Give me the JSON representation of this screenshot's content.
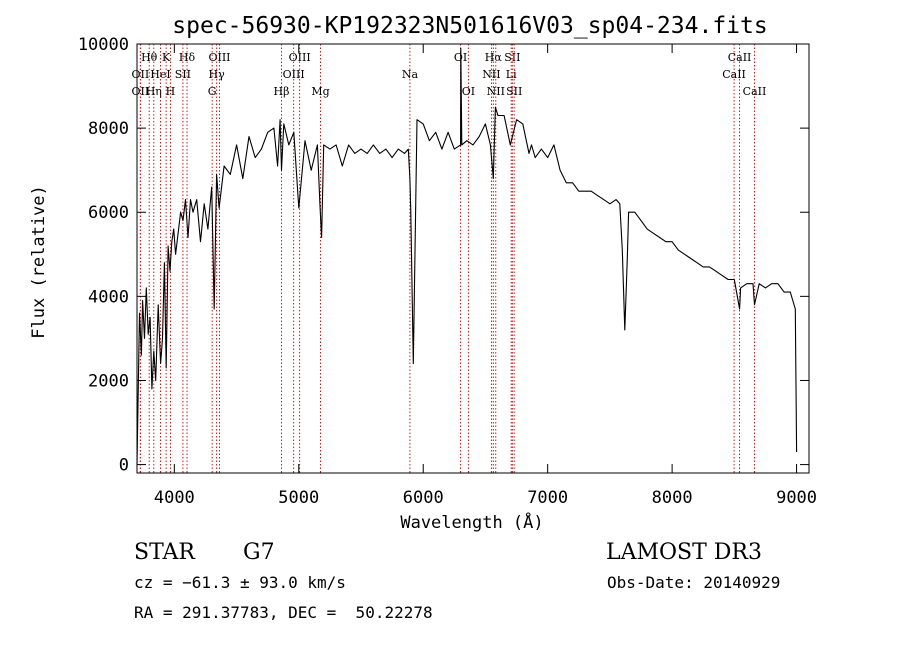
{
  "chart_data": {
    "type": "line",
    "title": "spec-56930-KP192323N501616V03_sp04-234.fits",
    "xlabel": "Wavelength (Å)",
    "ylabel": "Flux (relative)",
    "xlim": [
      3700,
      9100
    ],
    "ylim": [
      -200,
      10000
    ],
    "xticks": [
      4000,
      5000,
      6000,
      7000,
      8000,
      9000
    ],
    "yticks": [
      0,
      2000,
      4000,
      6000,
      8000,
      10000
    ],
    "series": [
      {
        "x": [
          3700,
          3720,
          3735,
          3745,
          3760,
          3775,
          3790,
          3805,
          3820,
          3835,
          3850,
          3870,
          3890,
          3905,
          3920,
          3935,
          3950,
          3965,
          3980,
          3995,
          4010,
          4030,
          4050,
          4070,
          4090,
          4110,
          4130,
          4150,
          4180,
          4210,
          4240,
          4270,
          4300,
          4320,
          4340,
          4360,
          4400,
          4450,
          4500,
          4550,
          4600,
          4650,
          4700,
          4750,
          4800,
          4830,
          4850,
          4861,
          4880,
          4920,
          4960,
          5000,
          5050,
          5100,
          5150,
          5170,
          5183,
          5200,
          5250,
          5300,
          5350,
          5400,
          5450,
          5500,
          5550,
          5600,
          5650,
          5700,
          5750,
          5800,
          5850,
          5880,
          5893,
          5900,
          5920,
          5950,
          6000,
          6050,
          6100,
          6150,
          6200,
          6250,
          6300,
          6302,
          6310,
          6350,
          6400,
          6450,
          6500,
          6540,
          6563,
          6580,
          6600,
          6650,
          6700,
          6750,
          6800,
          6850,
          6870,
          6900,
          6950,
          7000,
          7050,
          7100,
          7150,
          7200,
          7250,
          7300,
          7350,
          7400,
          7450,
          7500,
          7550,
          7580,
          7600,
          7620,
          7640,
          7650,
          7700,
          7750,
          7800,
          7850,
          7900,
          7950,
          8000,
          8050,
          8100,
          8150,
          8200,
          8250,
          8300,
          8350,
          8400,
          8450,
          8500,
          8542,
          8550,
          8600,
          8650,
          8662,
          8700,
          8750,
          8800,
          8850,
          8900,
          8950,
          8990,
          9000
        ],
        "y": [
          0,
          3600,
          2600,
          3900,
          3000,
          4200,
          3100,
          3500,
          1800,
          2700,
          2000,
          3800,
          2400,
          3000,
          4800,
          2300,
          5200,
          4600,
          5300,
          5600,
          5000,
          5500,
          6000,
          5800,
          6300,
          5400,
          6300,
          6000,
          6300,
          5300,
          6200,
          5600,
          6600,
          3700,
          6900,
          6100,
          7100,
          6900,
          7600,
          6800,
          7800,
          7300,
          7500,
          7900,
          8000,
          7100,
          8200,
          7000,
          8100,
          7600,
          7900,
          6100,
          7700,
          7000,
          7600,
          6200,
          5400,
          7600,
          7500,
          7600,
          7100,
          7600,
          7400,
          7500,
          7400,
          7600,
          7400,
          7500,
          7300,
          7500,
          7400,
          7500,
          6800,
          6000,
          2400,
          8200,
          8100,
          7700,
          7900,
          7500,
          7900,
          7500,
          7600,
          9900,
          7600,
          7700,
          7600,
          7800,
          8100,
          7600,
          6800,
          8500,
          8300,
          8300,
          7600,
          8200,
          8100,
          7400,
          7600,
          7300,
          7500,
          7300,
          7600,
          7000,
          6700,
          6700,
          6500,
          6500,
          6500,
          6400,
          6300,
          6200,
          6300,
          6200,
          5100,
          3200,
          4900,
          6000,
          6000,
          5800,
          5600,
          5500,
          5400,
          5300,
          5300,
          5100,
          5000,
          4900,
          4800,
          4700,
          4700,
          4600,
          4500,
          4400,
          4400,
          3700,
          4200,
          4300,
          4300,
          3800,
          4300,
          4200,
          4300,
          4300,
          4100,
          4100,
          3700,
          300
        ]
      }
    ],
    "line_markers": [
      {
        "label": "Hθ",
        "x": 3798,
        "row": 1
      },
      {
        "label": "K",
        "x": 3934,
        "row": 1
      },
      {
        "label": "Hδ",
        "x": 4102,
        "row": 1
      },
      {
        "label": "OII",
        "x": 3727,
        "row": 2
      },
      {
        "label": "HeI",
        "x": 3889,
        "row": 2
      },
      {
        "label": "SII",
        "x": 4069,
        "row": 2
      },
      {
        "label": "OII",
        "x": 3727,
        "row": 3
      },
      {
        "label": "Hη",
        "x": 3835,
        "row": 3
      },
      {
        "label": "H",
        "x": 3969,
        "row": 3
      },
      {
        "label": "OIII",
        "x": 4363,
        "row": 1
      },
      {
        "label": "Hγ",
        "x": 4340,
        "row": 2
      },
      {
        "label": "G",
        "x": 4304,
        "row": 3
      },
      {
        "label": "Hβ",
        "x": 4861,
        "row": 3
      },
      {
        "label": "OIII",
        "x": 5007,
        "row": 1
      },
      {
        "label": "OIII",
        "x": 4959,
        "row": 2
      },
      {
        "label": "Mg",
        "x": 5175,
        "row": 3
      },
      {
        "label": "Na",
        "x": 5893,
        "row": 2
      },
      {
        "label": "OI",
        "x": 6300,
        "row": 1
      },
      {
        "label": "OI",
        "x": 6363,
        "row": 3
      },
      {
        "label": "Hα",
        "x": 6563,
        "row": 1
      },
      {
        "label": "SII",
        "x": 6716,
        "row": 1
      },
      {
        "label": "NII",
        "x": 6548,
        "row": 2
      },
      {
        "label": "Li",
        "x": 6707,
        "row": 2
      },
      {
        "label": "NII",
        "x": 6583,
        "row": 3
      },
      {
        "label": "SII",
        "x": 6731,
        "row": 3
      },
      {
        "label": "CaII",
        "x": 8542,
        "row": 1
      },
      {
        "label": "CaII",
        "x": 8498,
        "row": 2
      },
      {
        "label": "CaII",
        "x": 8662,
        "row": 3
      }
    ]
  },
  "info": {
    "object_type": "STAR",
    "subclass": "G7",
    "cz": "cz = −61.3 ± 93.0 km/s",
    "coords": "RA = 291.37783, DEC =  50.22278",
    "survey": "LAMOST DR3",
    "obs_date": "Obs-Date: 20140929"
  }
}
